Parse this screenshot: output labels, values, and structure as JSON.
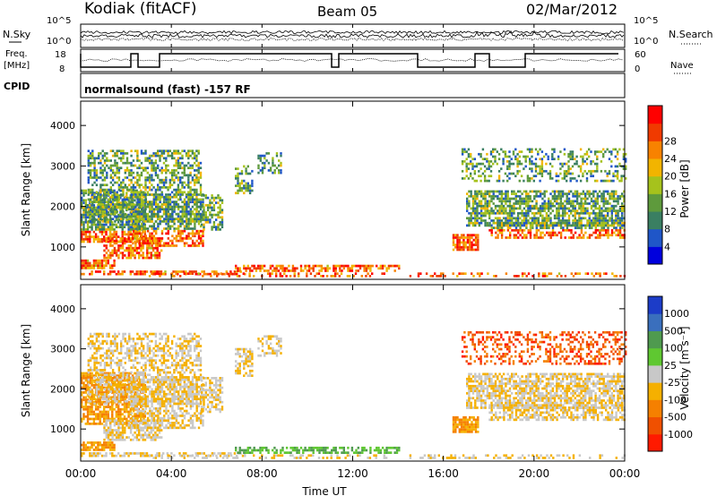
{
  "header": {
    "station": "Kodiak (fitACF)",
    "beam": "Beam 05",
    "date": "02/Mar/2012"
  },
  "panels": {
    "nsky_label": "N.Sky",
    "freq_label_line1": "Freq.",
    "freq_label_line2": "[MHz]",
    "cpid_label": "CPID",
    "nsearch_label": "N.Search",
    "nave_label": "Nave",
    "nsky_ticks": [
      "10^5",
      "10^0"
    ],
    "nsearch_ticks": [
      "10^5",
      "10^0"
    ],
    "freq_ticks": [
      "18",
      "8"
    ],
    "nave_ticks": [
      "60",
      "0"
    ],
    "cpid_text": "normalsound (fast) -157 RF"
  },
  "chart_data": [
    {
      "type": "heatmap",
      "name": "power",
      "ylabel": "Slant Range [km]",
      "xlabel": "Time UT",
      "x_ticks": [
        "00:00",
        "04:00",
        "08:00",
        "12:00",
        "16:00",
        "20:00",
        "00:00"
      ],
      "y_ticks": [
        "1000",
        "2000",
        "3000",
        "4000"
      ],
      "ylim": [
        200,
        4600
      ],
      "xlim_hours": [
        0,
        24
      ],
      "colorbar": {
        "label": "Power [dB]",
        "ticks": [
          "4",
          "8",
          "12",
          "16",
          "20",
          "24",
          "28"
        ],
        "colors": [
          "#0000dd",
          "#1f56c8",
          "#3a7f62",
          "#5e9a3c",
          "#a6c21c",
          "#f2b400",
          "#f88200",
          "#f03a00",
          "#ff0000"
        ]
      }
    },
    {
      "type": "heatmap",
      "name": "velocity",
      "ylabel": "Slant Range [km]",
      "xlabel": "Time UT",
      "x_ticks": [
        "00:00",
        "04:00",
        "08:00",
        "12:00",
        "16:00",
        "20:00",
        "00:00"
      ],
      "y_ticks": [
        "1000",
        "2000",
        "3000",
        "4000"
      ],
      "ylim": [
        200,
        4600
      ],
      "xlim_hours": [
        0,
        24
      ],
      "colorbar": {
        "label": "Velocity [m s⁻¹]",
        "ticks": [
          "1000",
          "500",
          "100",
          "25",
          "-25",
          "-100",
          "-500",
          "-1000"
        ],
        "colors": [
          "#1c3cc8",
          "#3a6fbd",
          "#4f9a4f",
          "#5fc831",
          "#c8c8c8",
          "#f5b000",
          "#f58000",
          "#f05000",
          "#ff1a00"
        ]
      }
    }
  ]
}
